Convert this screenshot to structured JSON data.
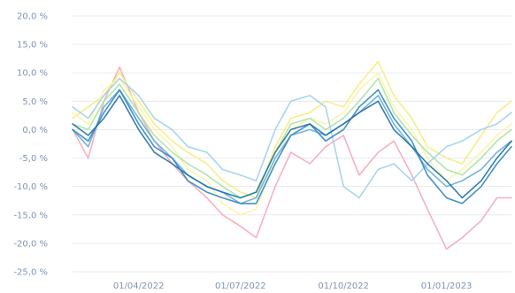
{
  "chart_data": {
    "type": "line",
    "title": "",
    "xlabel": "",
    "ylabel": "",
    "grid": true,
    "legend": "none",
    "x_range": [
      "2022-02-01",
      "2023-02-28"
    ],
    "ylim": [
      -25,
      20
    ],
    "y_ticks": [
      20,
      15,
      10,
      5,
      0,
      -5,
      -10,
      -15,
      -20,
      -25
    ],
    "y_tick_labels": [
      "20,0 %",
      "15,0 %",
      "10,0 %",
      "5,0 %",
      "0,0 %",
      "-5,0 %",
      "-10,0 %",
      "-15,0 %",
      "-20,0 %",
      "-25,0 %"
    ],
    "x_ticks": [
      "2022-04-01",
      "2022-07-01",
      "2022-10-01",
      "2023-01-01"
    ],
    "x_tick_labels": [
      "01/04/2022",
      "01/07/2022",
      "01/10/2022",
      "01/01/2023"
    ],
    "series": [
      {
        "color": "#f4a9b8",
        "x": [
          "2022-02-01",
          "2022-02-15",
          "2022-03-01",
          "2022-03-15",
          "2022-04-01",
          "2022-04-15",
          "2022-05-01",
          "2022-05-15",
          "2022-06-01",
          "2022-06-15",
          "2022-07-01",
          "2022-07-15",
          "2022-08-01",
          "2022-08-15",
          "2022-09-01",
          "2022-09-15",
          "2022-10-01",
          "2022-10-15",
          "2022-11-01",
          "2022-11-15",
          "2022-12-01",
          "2022-12-15",
          "2023-01-01",
          "2023-01-15",
          "2023-02-01",
          "2023-02-15",
          "2023-02-28"
        ],
        "y": [
          0,
          -5,
          5,
          11,
          3,
          -2,
          -6,
          -9,
          -12,
          -15,
          -17,
          -19,
          -10,
          -4,
          -6,
          -3,
          -1,
          -8,
          -4,
          -2,
          -8,
          -14,
          -21,
          -19,
          -16,
          -12,
          -12
        ]
      },
      {
        "color": "#f6ec7a",
        "x": [
          "2022-02-01",
          "2022-02-15",
          "2022-03-01",
          "2022-03-15",
          "2022-04-01",
          "2022-04-15",
          "2022-05-01",
          "2022-05-15",
          "2022-06-01",
          "2022-06-15",
          "2022-07-01",
          "2022-07-15",
          "2022-08-01",
          "2022-08-15",
          "2022-09-01",
          "2022-09-15",
          "2022-10-01",
          "2022-10-15",
          "2022-11-01",
          "2022-11-15",
          "2022-12-01",
          "2022-12-15",
          "2023-01-01",
          "2023-01-15",
          "2023-02-01",
          "2023-02-15",
          "2023-02-28"
        ],
        "y": [
          2,
          4,
          6,
          10,
          5,
          1,
          -2,
          -4,
          -6,
          -9,
          -11,
          -12,
          -3,
          2,
          3,
          5,
          4,
          8,
          12,
          6,
          2,
          -3,
          -5,
          -6,
          -1,
          3,
          5
        ]
      },
      {
        "color": "#fbf3a6",
        "x": [
          "2022-02-01",
          "2022-02-15",
          "2022-03-01",
          "2022-03-15",
          "2022-04-01",
          "2022-04-15",
          "2022-05-01",
          "2022-05-15",
          "2022-06-01",
          "2022-06-15",
          "2022-07-01",
          "2022-07-15",
          "2022-08-01",
          "2022-08-15",
          "2022-09-01",
          "2022-09-15",
          "2022-10-01",
          "2022-10-15",
          "2022-11-01",
          "2022-11-15",
          "2022-12-01",
          "2022-12-15",
          "2023-01-01",
          "2023-01-15",
          "2023-02-01",
          "2023-02-15",
          "2023-02-28"
        ],
        "y": [
          3,
          1,
          7,
          9,
          4,
          0,
          -3,
          -7,
          -9,
          -13,
          -15,
          -14,
          -5,
          0,
          2,
          1,
          3,
          7,
          10,
          4,
          0,
          -5,
          -9,
          -7,
          -4,
          -1,
          1
        ]
      },
      {
        "color": "#a8e3a0",
        "x": [
          "2022-02-01",
          "2022-02-15",
          "2022-03-01",
          "2022-03-15",
          "2022-04-01",
          "2022-04-15",
          "2022-05-01",
          "2022-05-15",
          "2022-06-01",
          "2022-06-15",
          "2022-07-01",
          "2022-07-15",
          "2022-08-01",
          "2022-08-15",
          "2022-09-01",
          "2022-09-15",
          "2022-10-01",
          "2022-10-15",
          "2022-11-01",
          "2022-11-15",
          "2022-12-01",
          "2022-12-15",
          "2023-01-01",
          "2023-01-15",
          "2023-02-01",
          "2023-02-15",
          "2023-02-28"
        ],
        "y": [
          1,
          0,
          5,
          8,
          3,
          -1,
          -4,
          -6,
          -8,
          -10,
          -12,
          -11,
          -4,
          1,
          2,
          0,
          2,
          5,
          9,
          3,
          -1,
          -4,
          -7,
          -8,
          -5,
          -2,
          0
        ]
      },
      {
        "color": "#9ed2ec",
        "x": [
          "2022-02-01",
          "2022-02-15",
          "2022-03-01",
          "2022-03-15",
          "2022-04-01",
          "2022-04-15",
          "2022-05-01",
          "2022-05-15",
          "2022-06-01",
          "2022-06-15",
          "2022-07-01",
          "2022-07-15",
          "2022-08-01",
          "2022-08-15",
          "2022-09-01",
          "2022-09-15",
          "2022-10-01",
          "2022-10-15",
          "2022-11-01",
          "2022-11-15",
          "2022-12-01",
          "2022-12-15",
          "2023-01-01",
          "2023-01-15",
          "2023-02-01",
          "2023-02-15",
          "2023-02-28"
        ],
        "y": [
          4,
          2,
          6,
          9,
          6,
          2,
          0,
          -3,
          -4,
          -7,
          -8,
          -9,
          0,
          5,
          6,
          4,
          -10,
          -12,
          -7,
          -6,
          -9,
          -6,
          -3,
          -2,
          0,
          1,
          3
        ]
      },
      {
        "color": "#62aeda",
        "x": [
          "2022-02-01",
          "2022-02-15",
          "2022-03-01",
          "2022-03-15",
          "2022-04-01",
          "2022-04-15",
          "2022-05-01",
          "2022-05-15",
          "2022-06-01",
          "2022-06-15",
          "2022-07-01",
          "2022-07-15",
          "2022-08-01",
          "2022-08-15",
          "2022-09-01",
          "2022-09-15",
          "2022-10-01",
          "2022-10-15",
          "2022-11-01",
          "2022-11-15",
          "2022-12-01",
          "2022-12-15",
          "2023-01-01",
          "2023-01-15",
          "2023-02-01",
          "2023-02-15",
          "2023-02-28"
        ],
        "y": [
          0,
          -3,
          4,
          7,
          2,
          -2,
          -5,
          -8,
          -10,
          -11,
          -13,
          -12,
          -5,
          -1,
          0,
          -1,
          1,
          3,
          6,
          1,
          -3,
          -7,
          -10,
          -9,
          -7,
          -4,
          -2
        ]
      },
      {
        "color": "#2f86c2",
        "x": [
          "2022-02-01",
          "2022-02-15",
          "2022-03-01",
          "2022-03-15",
          "2022-04-01",
          "2022-04-15",
          "2022-05-01",
          "2022-05-15",
          "2022-06-01",
          "2022-06-15",
          "2022-07-01",
          "2022-07-15",
          "2022-08-01",
          "2022-08-15",
          "2022-09-01",
          "2022-09-15",
          "2022-10-01",
          "2022-10-15",
          "2022-11-01",
          "2022-11-15",
          "2022-12-01",
          "2022-12-15",
          "2023-01-01",
          "2023-01-15",
          "2023-02-01",
          "2023-02-15",
          "2023-02-28"
        ],
        "y": [
          0,
          -2,
          3,
          7,
          1,
          -3,
          -5,
          -9,
          -11,
          -12,
          -13,
          -13,
          -6,
          -1,
          1,
          -2,
          0,
          4,
          7,
          2,
          -2,
          -8,
          -12,
          -13,
          -10,
          -6,
          -3
        ]
      },
      {
        "color": "#1f6fa8",
        "x": [
          "2022-02-01",
          "2022-02-15",
          "2022-03-01",
          "2022-03-15",
          "2022-04-01",
          "2022-04-15",
          "2022-05-01",
          "2022-05-15",
          "2022-06-01",
          "2022-06-15",
          "2022-07-01",
          "2022-07-15",
          "2022-08-01",
          "2022-08-15",
          "2022-09-01",
          "2022-09-15",
          "2022-10-01",
          "2022-10-15",
          "2022-11-01",
          "2022-11-15",
          "2022-12-01",
          "2022-12-15",
          "2023-01-01",
          "2023-01-15",
          "2023-02-01",
          "2023-02-15",
          "2023-02-28"
        ],
        "y": [
          1,
          -1,
          2,
          6,
          0,
          -4,
          -6,
          -8,
          -10,
          -11,
          -12,
          -11,
          -4,
          0,
          1,
          -1,
          1,
          3,
          5,
          0,
          -3,
          -6,
          -9,
          -12,
          -9,
          -5,
          -2
        ]
      }
    ]
  }
}
